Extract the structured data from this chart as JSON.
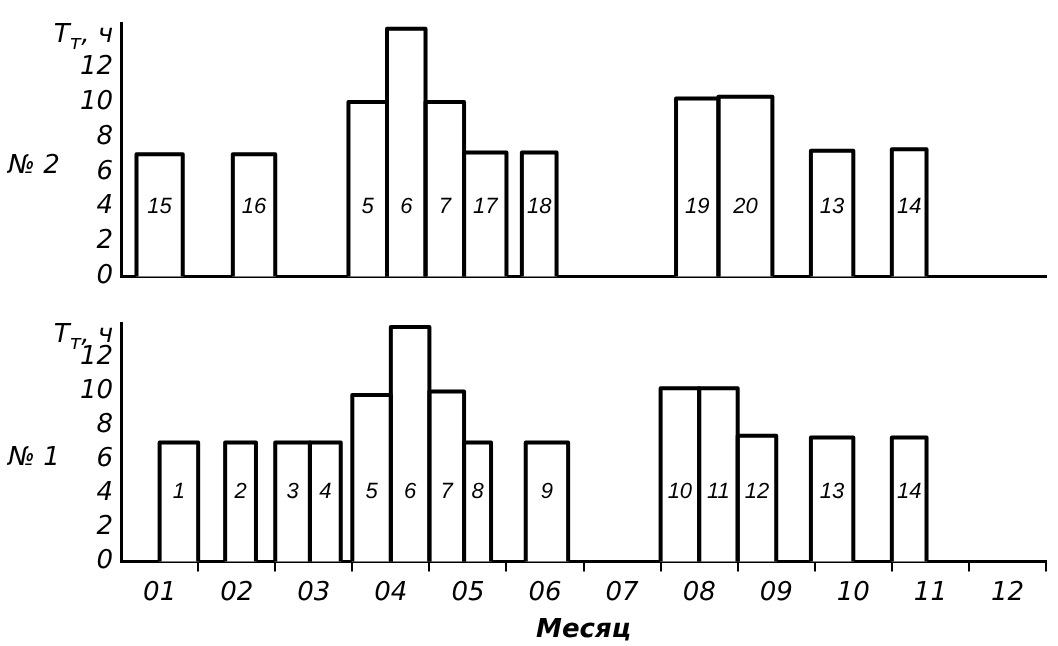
{
  "chart_data": [
    {
      "type": "histogram",
      "title": "№ 2",
      "ylabel": "T$_{т}$, ч",
      "color": "#ffffff",
      "tick_labels": "y",
      "bins": [
        0.2,
        0.8,
        1.45,
        2.0,
        2.95,
        3.45,
        3.95,
        4.45,
        5.0,
        5.2,
        5.65,
        7.2,
        7.75,
        8.45,
        8.95,
        9.5,
        10.0,
        10.45
      ],
      "values": [
        7,
        null,
        7,
        null,
        10,
        14.2,
        10,
        7.1,
        null,
        7.1,
        null,
        10.2,
        10.3,
        null,
        7.2,
        null,
        7.3
      ],
      "annotations": [
        "15",
        "16",
        "5",
        "6",
        "7",
        "17",
        "18",
        "19",
        "20",
        "13",
        "14"
      ],
      "xlim": [
        0,
        12
      ],
      "ylim": [
        0,
        14.5
      ],
      "yticks": [
        0,
        2,
        4,
        6,
        8,
        10,
        12
      ]
    },
    {
      "type": "histogram",
      "title": "№ 1",
      "ylabel": "T$_{т}$, ч",
      "xlabel": "Месяц",
      "color": "#ffffff",
      "bins": [
        0.5,
        1.0,
        1.35,
        1.75,
        2.0,
        2.45,
        2.85,
        3.0,
        3.5,
        4.0,
        4.45,
        4.8,
        5.25,
        5.8,
        7.0,
        7.5,
        8.0,
        8.5,
        8.95,
        9.5,
        10.0,
        10.45
      ],
      "values": [
        7,
        null,
        7,
        null,
        7,
        7,
        null,
        9.8,
        13.8,
        10,
        7,
        null,
        7,
        null,
        10.2,
        10.2,
        7.4,
        null,
        7.3,
        null,
        7.3
      ],
      "annotations": [
        "1",
        "2",
        "3",
        "4",
        "5",
        "6",
        "7",
        "8",
        "9",
        "10",
        "11",
        "12",
        "13",
        "14"
      ],
      "xlim": [
        0,
        12
      ],
      "ylim": [
        0,
        14
      ],
      "yticks": [
        0,
        2,
        4,
        6,
        8,
        10,
        12
      ],
      "xticks": [
        {
          "value": 0.5,
          "label": "01"
        },
        {
          "value": 1,
          "label": null
        },
        {
          "value": 1.5,
          "label": "02"
        },
        {
          "value": 2,
          "label": null
        },
        {
          "value": 2.5,
          "label": "03"
        },
        {
          "value": 3,
          "label": null
        },
        {
          "value": 3.5,
          "label": "04"
        },
        {
          "value": 4,
          "label": null
        },
        {
          "value": 4.5,
          "label": "05"
        },
        {
          "value": 5,
          "label": null
        },
        {
          "value": 5.5,
          "label": "06"
        },
        {
          "value": 6,
          "label": null
        },
        {
          "value": 6.5,
          "label": "07"
        },
        {
          "value": 7,
          "label": null
        },
        {
          "value": 7.5,
          "label": "08"
        },
        {
          "value": 8,
          "label": null
        },
        {
          "value": 8.5,
          "label": "09"
        },
        {
          "value": 9,
          "label": null
        },
        {
          "value": 9.5,
          "label": "10"
        },
        {
          "value": 10,
          "label": null
        },
        {
          "value": 10.5,
          "label": "11"
        },
        {
          "value": 11,
          "label": null
        },
        {
          "value": 11.5,
          "label": "12"
        },
        {
          "value": 12,
          "label": null
        }
      ]
    }
  ]
}
